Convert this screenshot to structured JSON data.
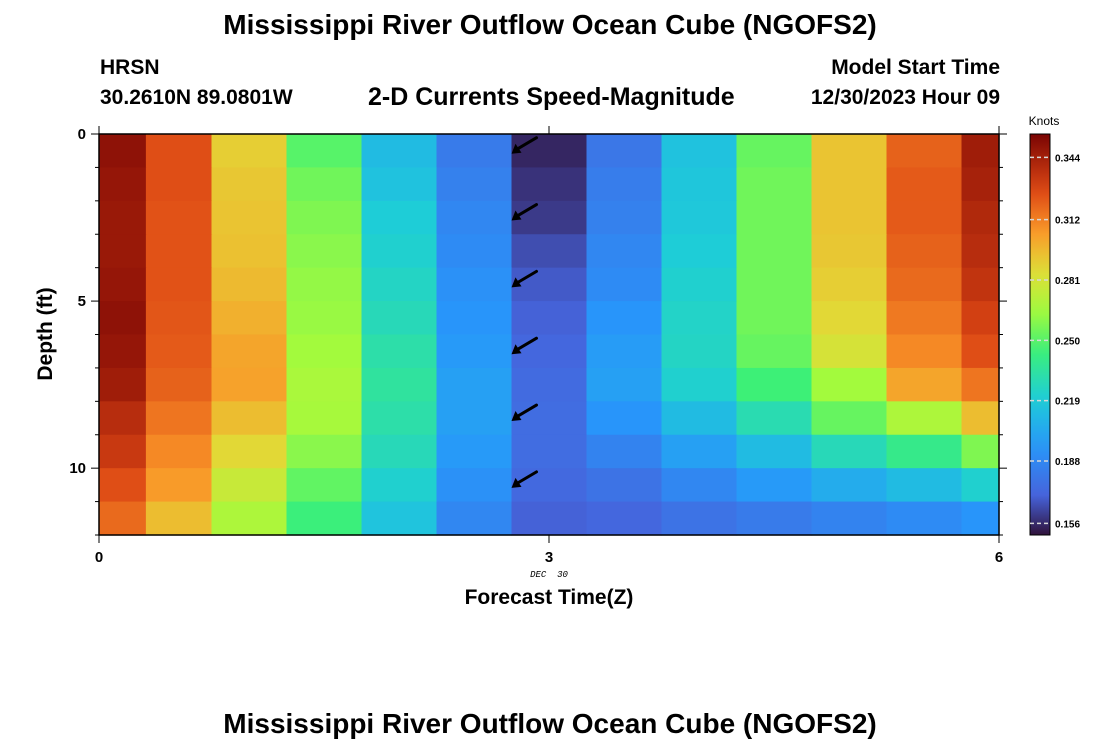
{
  "header": {
    "title": "Mississippi River Outflow Ocean Cube (NGOFS2)",
    "station": "HRSN",
    "coords": "30.2610N  89.0801W",
    "subtitle": "2-D Currents Speed-Magnitude",
    "model_label": "Model Start Time",
    "model_value": "12/30/2023 Hour 09"
  },
  "footer": {
    "title": "Mississippi River Outflow Ocean Cube (NGOFS2)"
  },
  "chart_data": {
    "type": "heatmap",
    "xlabel": "Forecast Time(Z)",
    "ylabel": "Depth (ft)",
    "x_ticks": [
      "0",
      "3",
      "6"
    ],
    "x_date_label": "DEC  30",
    "y_ticks": [
      "0",
      "5",
      "10"
    ],
    "xlim": [
      0,
      6
    ],
    "ylim": [
      0,
      12
    ],
    "colorbar": {
      "unit": "Knots",
      "ticks": [
        "0.344",
        "0.312",
        "0.281",
        "0.250",
        "0.219",
        "0.188",
        "0.156"
      ],
      "range": [
        0.15,
        0.356
      ]
    },
    "cell_x": [
      0.125,
      0.5,
      1.0,
      1.5,
      2.0,
      2.5,
      3.0,
      3.5,
      4.0,
      4.5,
      5.0,
      5.5,
      6.0
    ],
    "depth_rows": [
      0.5,
      1.5,
      2.5,
      3.5,
      4.5,
      5.5,
      6.5,
      7.5,
      8.5,
      9.5,
      10.5,
      11.5
    ],
    "values": [
      [
        0.35,
        0.325,
        0.29,
        0.25,
        0.212,
        0.182,
        0.155,
        0.18,
        0.215,
        0.253,
        0.293,
        0.32,
        0.345
      ],
      [
        0.348,
        0.325,
        0.292,
        0.255,
        0.215,
        0.185,
        0.158,
        0.183,
        0.217,
        0.255,
        0.293,
        0.322,
        0.343
      ],
      [
        0.347,
        0.324,
        0.293,
        0.258,
        0.22,
        0.188,
        0.16,
        0.185,
        0.218,
        0.255,
        0.293,
        0.322,
        0.34
      ],
      [
        0.347,
        0.324,
        0.294,
        0.26,
        0.222,
        0.19,
        0.165,
        0.188,
        0.22,
        0.255,
        0.292,
        0.32,
        0.338
      ],
      [
        0.348,
        0.324,
        0.296,
        0.262,
        0.225,
        0.193,
        0.168,
        0.19,
        0.222,
        0.255,
        0.29,
        0.318,
        0.335
      ],
      [
        0.35,
        0.323,
        0.299,
        0.263,
        0.228,
        0.195,
        0.17,
        0.195,
        0.224,
        0.255,
        0.287,
        0.314,
        0.33
      ],
      [
        0.348,
        0.322,
        0.302,
        0.265,
        0.232,
        0.197,
        0.172,
        0.198,
        0.225,
        0.253,
        0.282,
        0.31,
        0.325
      ],
      [
        0.345,
        0.32,
        0.303,
        0.267,
        0.235,
        0.2,
        0.174,
        0.2,
        0.222,
        0.245,
        0.265,
        0.302,
        0.315
      ],
      [
        0.338,
        0.315,
        0.295,
        0.266,
        0.232,
        0.2,
        0.175,
        0.195,
        0.212,
        0.23,
        0.253,
        0.268,
        0.295
      ],
      [
        0.333,
        0.31,
        0.287,
        0.26,
        0.228,
        0.197,
        0.175,
        0.186,
        0.2,
        0.212,
        0.228,
        0.24,
        0.258
      ],
      [
        0.325,
        0.305,
        0.277,
        0.252,
        0.222,
        0.193,
        0.173,
        0.178,
        0.188,
        0.197,
        0.205,
        0.212,
        0.222
      ],
      [
        0.318,
        0.295,
        0.268,
        0.244,
        0.216,
        0.188,
        0.17,
        0.172,
        0.178,
        0.182,
        0.186,
        0.19,
        0.195
      ]
    ],
    "current_vectors": [
      {
        "x": 2.85,
        "depth": 0.5,
        "direction": "southwest"
      },
      {
        "x": 2.85,
        "depth": 2.5,
        "direction": "southwest"
      },
      {
        "x": 2.85,
        "depth": 4.5,
        "direction": "southwest"
      },
      {
        "x": 2.85,
        "depth": 6.5,
        "direction": "southwest"
      },
      {
        "x": 2.85,
        "depth": 8.5,
        "direction": "southwest"
      },
      {
        "x": 2.85,
        "depth": 10.5,
        "direction": "southwest"
      }
    ]
  }
}
